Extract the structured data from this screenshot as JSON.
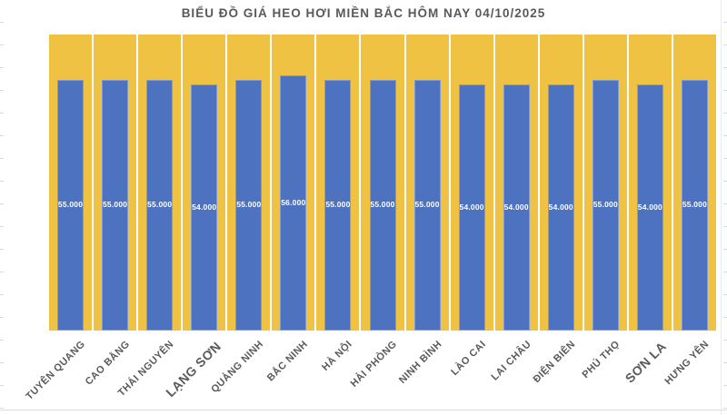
{
  "chart_data": {
    "type": "bar",
    "title": "BIỂU ĐỒ GIÁ HEO HƠI MIỀN BẮC HÔM NAY 04/10/2025",
    "categories": [
      "TUYÊN QUANG",
      "CAO BẰNG",
      "THÁI NGUYÊN",
      "LẠNG SƠN",
      "QUẢNG NINH",
      "BẮC NINH",
      "HÀ NỘI",
      "HẢI PHÒNG",
      "NINH BÌNH",
      "LÀO CAI",
      "LAI CHÂU",
      "ĐIỆN BIÊN",
      "PHÚ THỌ",
      "SƠN LA",
      "HƯNG YÊN"
    ],
    "values": [
      55000,
      55000,
      55000,
      54000,
      55000,
      56000,
      55000,
      55000,
      55000,
      54000,
      54000,
      54000,
      55000,
      54000,
      55000
    ],
    "value_labels": [
      "55.000",
      "55.000",
      "55.000",
      "54.000",
      "55.000",
      "56.000",
      "55.000",
      "55.000",
      "55.000",
      "54.000",
      "54.000",
      "54.000",
      "55.000",
      "54.000",
      "55.000"
    ],
    "xlabel": "",
    "ylabel": "",
    "ylim": [
      0,
      65000
    ],
    "background_column_value": 65000,
    "grid": "off",
    "legend": "none",
    "data_label_position": "inside-center",
    "large_label_indexes": [
      3,
      13
    ]
  },
  "colors": {
    "bar_fill": "#4C72C0",
    "background_column_fill": "#F0C244",
    "title_text": "#595959",
    "axis_label_text": "#595959",
    "data_label_text": "#FFFFFF",
    "gridline_sliver": "#D9D9D9"
  }
}
